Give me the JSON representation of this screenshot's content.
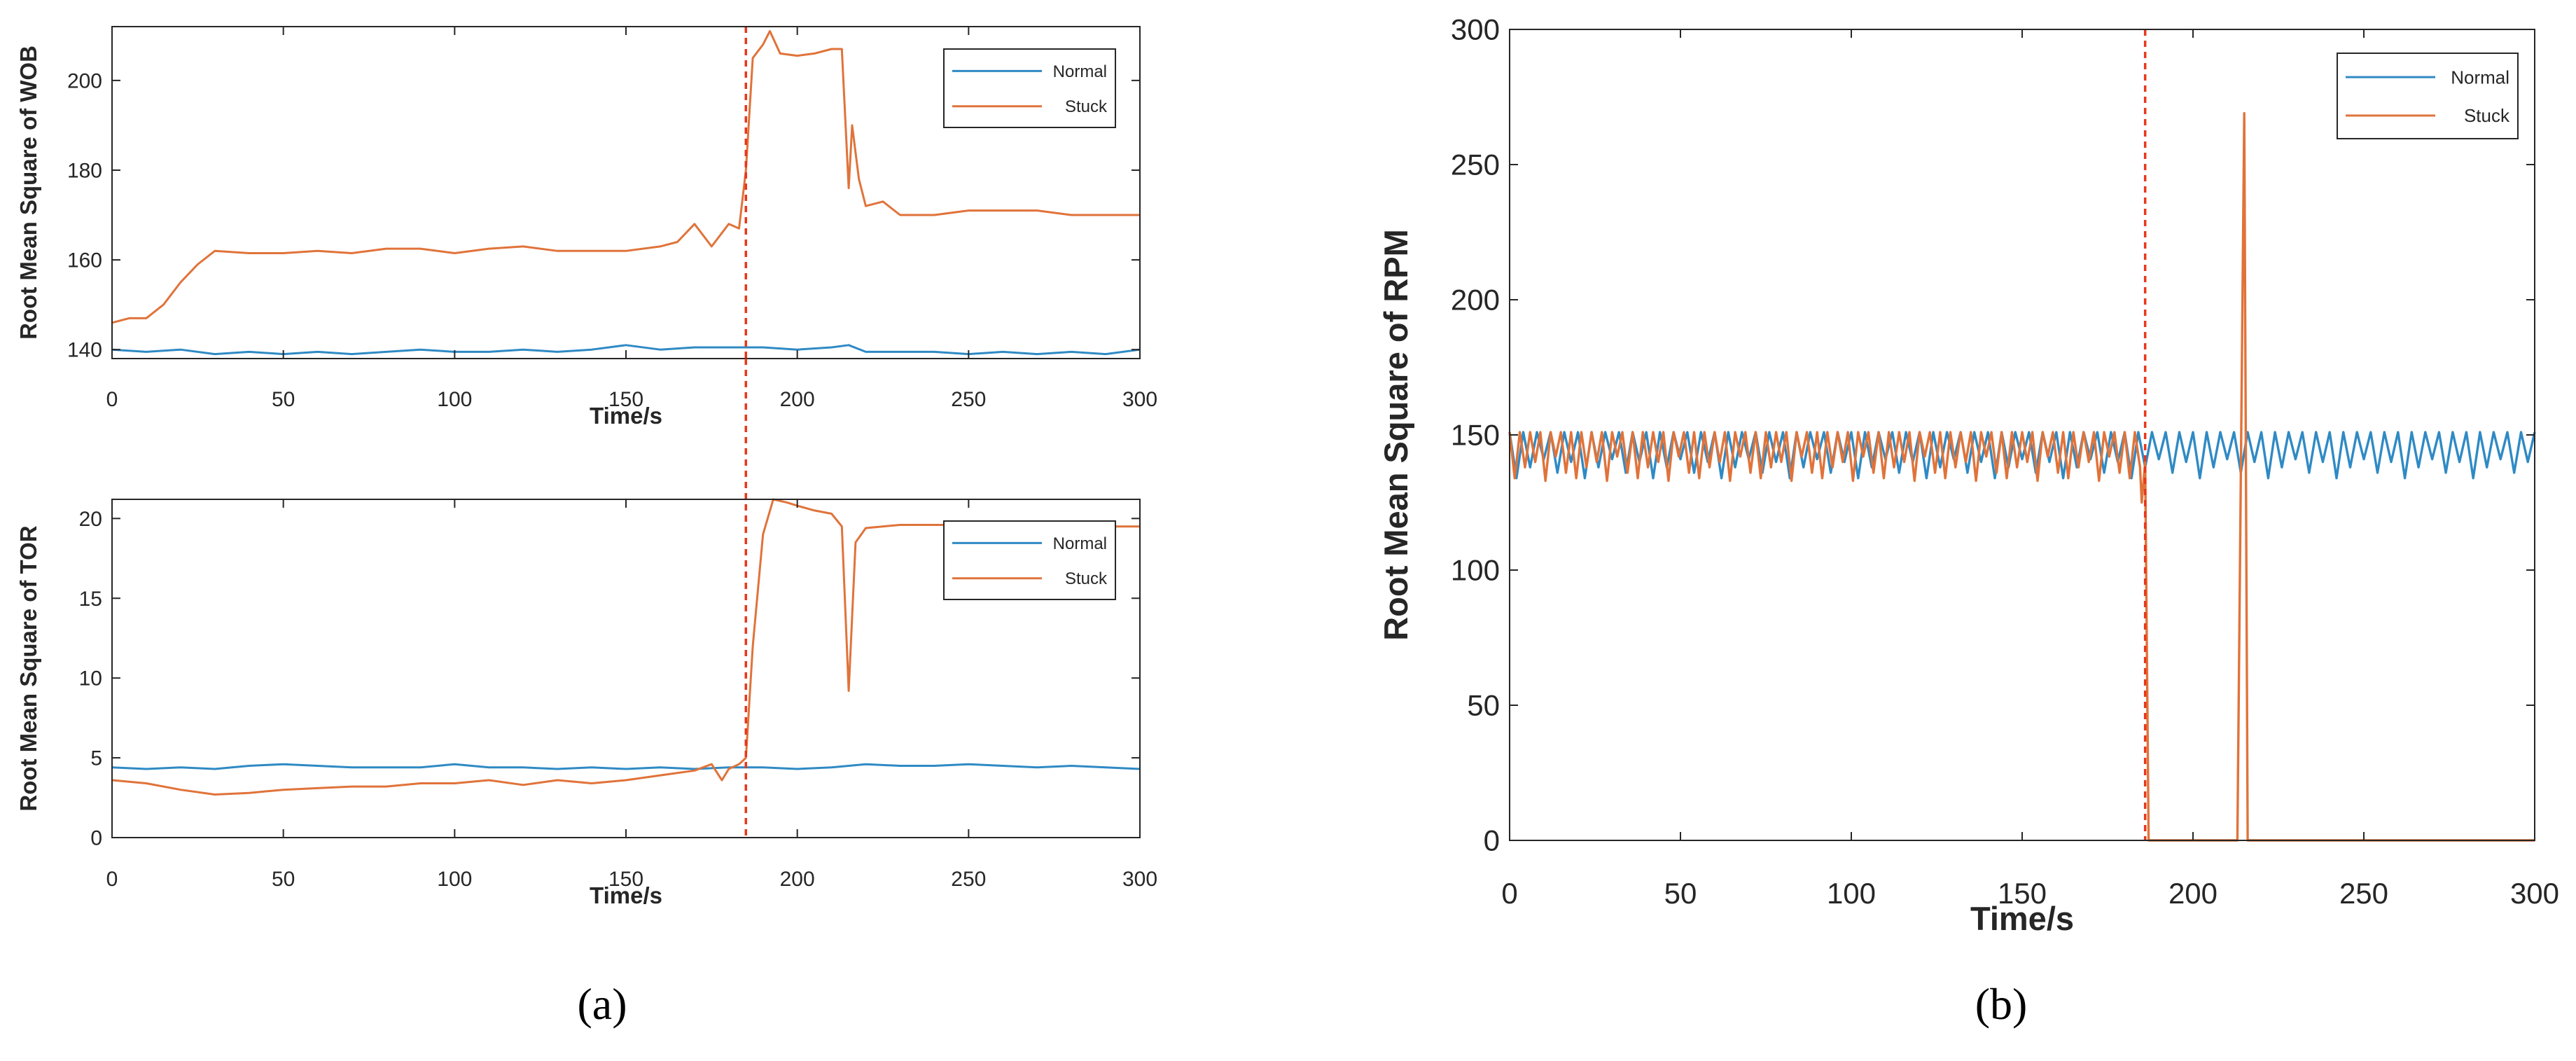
{
  "colors": {
    "normal": "#2f8ac4",
    "stuck": "#e0733a",
    "marker": "#e8381b",
    "axis": "#262626"
  },
  "panel_labels": {
    "a": "(a)",
    "b": "(b)"
  },
  "chart_data": [
    {
      "type": "line",
      "ylabel": "Root Mean Square of WOB",
      "xlabel": "Time/s",
      "xlim": [
        0,
        300
      ],
      "ylim": [
        138,
        212
      ],
      "xticks": [
        0,
        50,
        100,
        150,
        200,
        250,
        300
      ],
      "yticks": [
        140,
        160,
        180,
        200
      ],
      "grid": false,
      "legend": "top-right",
      "vline": 185,
      "series": [
        {
          "name": "Normal",
          "color_key": "normal",
          "x": [
            0,
            10,
            20,
            30,
            40,
            50,
            60,
            70,
            80,
            90,
            100,
            110,
            120,
            130,
            140,
            150,
            160,
            170,
            180,
            190,
            200,
            210,
            215,
            220,
            230,
            240,
            250,
            260,
            270,
            280,
            290,
            300
          ],
          "y": [
            140,
            139.5,
            140,
            139,
            139.5,
            139,
            139.5,
            139,
            139.5,
            140,
            139.5,
            139.5,
            140,
            139.5,
            140,
            141,
            140,
            140.5,
            140.5,
            140.5,
            140,
            140.5,
            141,
            139.5,
            139.5,
            139.5,
            139,
            139.5,
            139,
            139.5,
            139,
            140
          ]
        },
        {
          "name": "Stuck",
          "color_key": "stuck",
          "x": [
            0,
            5,
            10,
            15,
            20,
            25,
            30,
            40,
            50,
            60,
            70,
            80,
            90,
            100,
            110,
            120,
            130,
            140,
            150,
            160,
            165,
            170,
            175,
            180,
            183,
            185,
            187,
            190,
            192,
            195,
            200,
            205,
            210,
            213,
            215,
            216,
            218,
            220,
            225,
            230,
            240,
            250,
            260,
            270,
            280,
            290,
            300
          ],
          "y": [
            146,
            147,
            147,
            150,
            155,
            159,
            162,
            161.5,
            161.5,
            162,
            161.5,
            162.5,
            162.5,
            161.5,
            162.5,
            163,
            162,
            162,
            162,
            163,
            164,
            168,
            163,
            168,
            167,
            180,
            205,
            208,
            211,
            206,
            205.5,
            206,
            207,
            207,
            176,
            190,
            178,
            172,
            173,
            170,
            170,
            171,
            171,
            171,
            170,
            170,
            170
          ]
        }
      ]
    },
    {
      "type": "line",
      "ylabel": "Root Mean Square of TOR",
      "xlabel": "Time/s",
      "xlim": [
        0,
        300
      ],
      "ylim": [
        0,
        21.2
      ],
      "xticks": [
        0,
        50,
        100,
        150,
        200,
        250,
        300
      ],
      "yticks": [
        0,
        5,
        10,
        15,
        20
      ],
      "grid": false,
      "legend": "top-right",
      "vline": 185,
      "series": [
        {
          "name": "Normal",
          "color_key": "normal",
          "x": [
            0,
            10,
            20,
            30,
            40,
            50,
            60,
            70,
            80,
            90,
            100,
            110,
            120,
            130,
            140,
            150,
            160,
            170,
            180,
            190,
            200,
            210,
            220,
            230,
            240,
            250,
            260,
            270,
            280,
            290,
            300
          ],
          "y": [
            4.4,
            4.3,
            4.4,
            4.3,
            4.5,
            4.6,
            4.5,
            4.4,
            4.4,
            4.4,
            4.6,
            4.4,
            4.4,
            4.3,
            4.4,
            4.3,
            4.4,
            4.3,
            4.4,
            4.4,
            4.3,
            4.4,
            4.6,
            4.5,
            4.5,
            4.6,
            4.5,
            4.4,
            4.5,
            4.4,
            4.3
          ]
        },
        {
          "name": "Stuck",
          "color_key": "stuck",
          "x": [
            0,
            10,
            20,
            30,
            40,
            50,
            60,
            70,
            80,
            90,
            100,
            110,
            120,
            130,
            140,
            150,
            160,
            170,
            175,
            178,
            180,
            183,
            185,
            187,
            190,
            193,
            197,
            200,
            205,
            210,
            213,
            215,
            217,
            220,
            225,
            230,
            240,
            250,
            260,
            270,
            280,
            290,
            300
          ],
          "y": [
            3.6,
            3.4,
            3.0,
            2.7,
            2.8,
            3.0,
            3.1,
            3.2,
            3.2,
            3.4,
            3.4,
            3.6,
            3.3,
            3.6,
            3.4,
            3.6,
            3.9,
            4.2,
            4.6,
            3.6,
            4.3,
            4.6,
            5.0,
            12,
            19,
            21.2,
            21,
            20.8,
            20.5,
            20.3,
            19.5,
            9.2,
            18.5,
            19.4,
            19.5,
            19.6,
            19.6,
            19.6,
            19.5,
            19.5,
            19.6,
            19.5,
            19.5
          ]
        }
      ]
    },
    {
      "type": "line",
      "ylabel": "Root Mean Square of RPM",
      "xlabel": "Time/s",
      "xlim": [
        0,
        300
      ],
      "ylim": [
        0,
        300
      ],
      "xticks": [
        0,
        50,
        100,
        150,
        200,
        250,
        300
      ],
      "yticks": [
        0,
        50,
        100,
        150,
        200,
        250,
        300
      ],
      "grid": false,
      "legend": "top-right",
      "vline": 186,
      "normal_pattern": {
        "x_start": 0,
        "x_end": 300,
        "period": 4,
        "high": 151,
        "lows": [
          134,
          138,
          141,
          136,
          140
        ]
      },
      "stuck_pattern": {
        "x_start": 0,
        "x_end": 185,
        "period": 3,
        "high": 151,
        "lows": [
          134,
          138,
          140,
          133,
          142,
          136
        ]
      },
      "series": [
        {
          "name": "Normal",
          "color_key": "normal",
          "x": [],
          "y": []
        },
        {
          "name": "Stuck",
          "color_key": "stuck",
          "x": [
            185,
            186,
            187,
            188,
            212,
            213,
            215,
            216,
            217,
            220,
            300
          ],
          "y": [
            125,
            140,
            0,
            0,
            0,
            0,
            269,
            0,
            0,
            0,
            0
          ]
        }
      ]
    }
  ]
}
